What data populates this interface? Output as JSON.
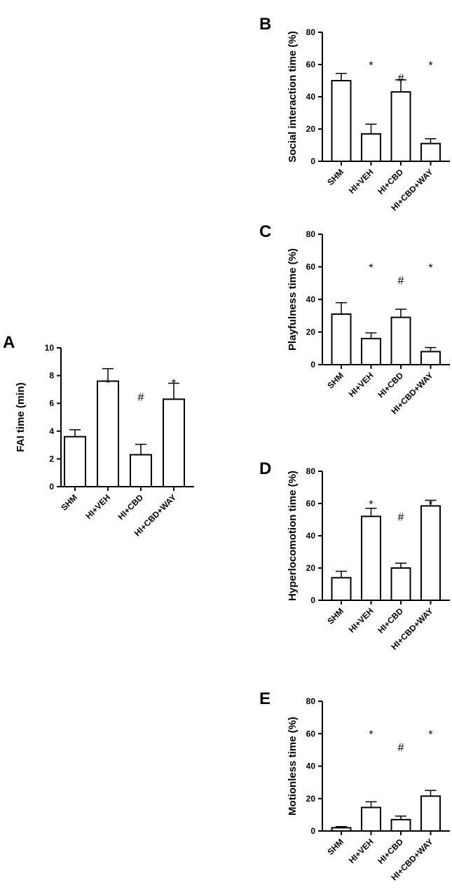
{
  "chart_data": [
    {
      "type": "bar",
      "panel": "A",
      "ylabel": "FAI time (min)",
      "ylim": [
        0,
        10
      ],
      "yticks": [
        0,
        2,
        4,
        6,
        8,
        10
      ],
      "categories": [
        "SHM",
        "HI+VEH",
        "HI+CBD",
        "HI+CBD+WAY"
      ],
      "values": [
        3.6,
        7.6,
        2.3,
        6.3
      ],
      "errors": [
        0.5,
        0.9,
        0.75,
        1.15
      ],
      "marks": [
        "",
        "*",
        "#",
        "*"
      ]
    },
    {
      "type": "bar",
      "panel": "B",
      "ylabel": "Social interaction time (%)",
      "ylim": [
        0,
        80
      ],
      "yticks": [
        0,
        20,
        40,
        60,
        80
      ],
      "categories": [
        "SHM",
        "HI+VEH",
        "HI+CBD",
        "HI+CBD+WAY"
      ],
      "values": [
        50,
        17,
        43,
        11
      ],
      "errors": [
        4.5,
        6,
        7.5,
        3
      ],
      "marks": [
        "",
        "*",
        "#",
        "*"
      ]
    },
    {
      "type": "bar",
      "panel": "C",
      "ylabel": "Playfulness time (%)",
      "ylim": [
        0,
        80
      ],
      "yticks": [
        0,
        20,
        40,
        60,
        80
      ],
      "categories": [
        "SHM",
        "HI+VEH",
        "HI+CBD",
        "HI+CBD+WAY"
      ],
      "values": [
        31,
        16,
        29,
        8
      ],
      "errors": [
        7,
        3.5,
        5,
        2.5
      ],
      "marks": [
        "",
        "*",
        "#",
        "*"
      ]
    },
    {
      "type": "bar",
      "panel": "D",
      "ylabel": "Hyperlocomotion time (%)",
      "ylim": [
        0,
        80
      ],
      "yticks": [
        0,
        20,
        40,
        60,
        80
      ],
      "categories": [
        "SHM",
        "HI+VEH",
        "HI+CBD",
        "HI+CBD+WAY"
      ],
      "values": [
        14,
        52,
        20,
        58.5
      ],
      "errors": [
        4,
        5,
        3,
        3.5
      ],
      "marks": [
        "",
        "*",
        "#",
        "*"
      ]
    },
    {
      "type": "bar",
      "panel": "E",
      "ylabel": "Motionless time (%)",
      "ylim": [
        0,
        80
      ],
      "yticks": [
        0,
        20,
        40,
        60,
        80
      ],
      "categories": [
        "SHM",
        "HI+VEH",
        "HI+CBD",
        "HI+CBD+WAY"
      ],
      "values": [
        2,
        14.5,
        7,
        21.5
      ],
      "errors": [
        0.7,
        3.5,
        2.2,
        3.5
      ],
      "marks": [
        "",
        "*",
        "#",
        "*"
      ]
    }
  ]
}
